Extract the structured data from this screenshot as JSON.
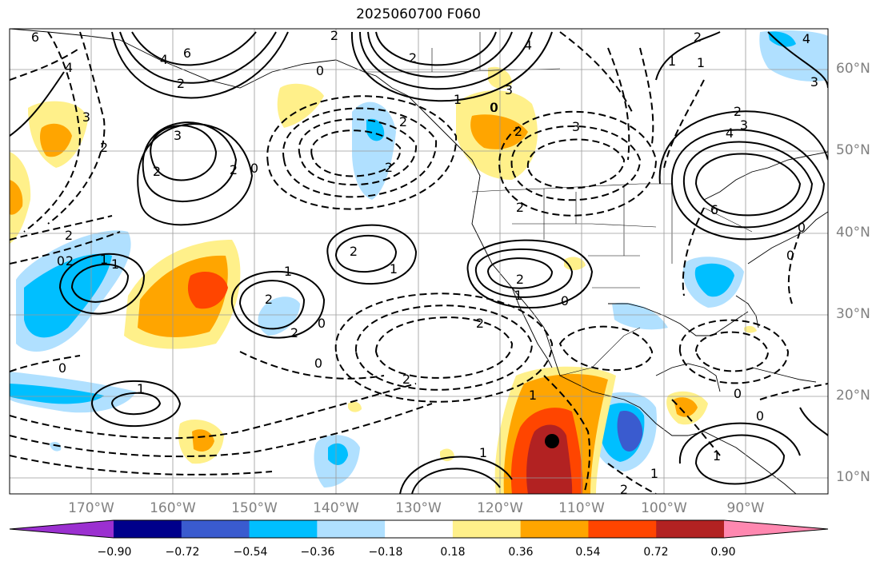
{
  "title": "2025060700 F060",
  "lat_ticks": [
    "60°N",
    "50°N",
    "40°N",
    "30°N",
    "20°N",
    "10°N"
  ],
  "lon_ticks": [
    "170°W",
    "160°W",
    "150°W",
    "140°W",
    "130°W",
    "120°W",
    "110°W",
    "100°W",
    "90°W"
  ],
  "colorbar": {
    "labels": [
      "−0.90",
      "−0.72",
      "−0.54",
      "−0.36",
      "−0.18",
      "0.18",
      "0.36",
      "0.54",
      "0.72",
      "0.90"
    ],
    "colors": [
      "#9b30d0",
      "#00008b",
      "#3a5bcf",
      "#00bfff",
      "#b0e0ff",
      "#ffffff",
      "#fff08a",
      "#ffa500",
      "#ff4500",
      "#b22222",
      "#ff88b0"
    ]
  },
  "contour_labels": [
    "6",
    "4",
    "4",
    "6",
    "2",
    "3",
    "2",
    "2",
    "0",
    "2",
    "3",
    "2",
    "4",
    "2",
    "0",
    "1",
    "2",
    "2",
    "0",
    "2",
    "2",
    "1",
    "1",
    "2",
    "0",
    "0",
    "1",
    "2",
    "1",
    "0",
    "2",
    "0",
    "2",
    "1",
    "1",
    "3",
    "2",
    "2",
    "3",
    "2",
    "4",
    "3",
    "4",
    "6",
    "0",
    "0",
    "1",
    "2",
    "1",
    "0",
    "1",
    "2",
    "2",
    "1",
    "1",
    "0",
    "0",
    "1",
    "3",
    "0",
    "2"
  ],
  "marker": {
    "label": "center-dot"
  }
}
